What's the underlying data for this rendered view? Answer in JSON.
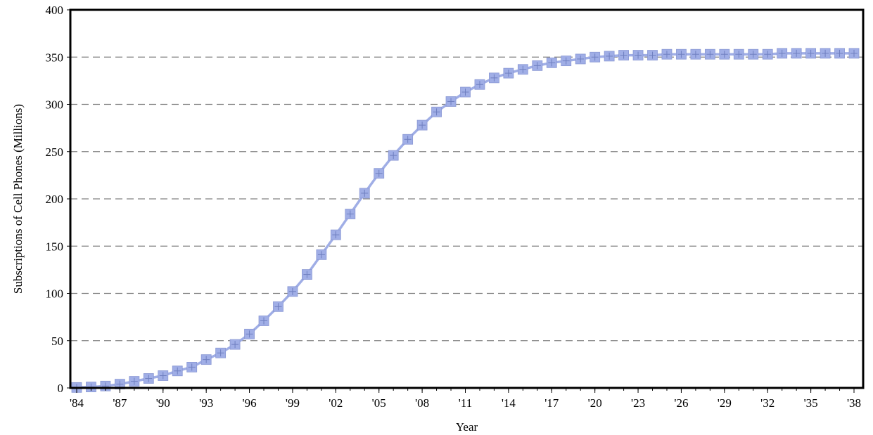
{
  "chart_data": {
    "type": "line",
    "title": "",
    "xlabel": "Year",
    "ylabel": "Subscriptions of Cell Phones (Millions)",
    "ylim": [
      0,
      400
    ],
    "yticks": [
      0,
      50,
      100,
      150,
      200,
      250,
      300,
      350,
      400
    ],
    "xlim": [
      1984,
      2038
    ],
    "xticks": [
      1984,
      1987,
      1990,
      1993,
      1996,
      1999,
      2002,
      2005,
      2008,
      2011,
      2014,
      2017,
      2020,
      2023,
      2026,
      2029,
      2032,
      2035,
      2038
    ],
    "xtick_labels": [
      "'84",
      "'87",
      "'90",
      "'93",
      "'96",
      "'99",
      "'02",
      "'05",
      "'08",
      "'11",
      "'14",
      "'17",
      "'20",
      "'23",
      "'26",
      "'29",
      "'32",
      "'35",
      "'38"
    ],
    "grid": "horizontal dashed",
    "legend": "none",
    "series": [
      {
        "color": "#a0aee6",
        "marker": "square-plus",
        "x": [
          1984,
          1985,
          1986,
          1987,
          1988,
          1989,
          1990,
          1991,
          1992,
          1993,
          1994,
          1995,
          1996,
          1997,
          1998,
          1999,
          2000,
          2001,
          2002,
          2003,
          2004,
          2005,
          2006,
          2007,
          2008,
          2009,
          2010,
          2011,
          2012,
          2013,
          2014,
          2015,
          2016,
          2017,
          2018,
          2019,
          2020,
          2021,
          2022,
          2023,
          2024,
          2025,
          2026,
          2027,
          2028,
          2029,
          2030,
          2031,
          2032,
          2033,
          2034,
          2035,
          2036,
          2037,
          2038
        ],
        "y": [
          0.5,
          1,
          2,
          4,
          7,
          10,
          13,
          18,
          22,
          30,
          37,
          46,
          57,
          71,
          86,
          102,
          120,
          141,
          162,
          184,
          206,
          227,
          246,
          263,
          278,
          292,
          303,
          313,
          321,
          328,
          333,
          337,
          341,
          344,
          346,
          348,
          350,
          351,
          352,
          352,
          352,
          353,
          353,
          353,
          353,
          353,
          353,
          353,
          353,
          354,
          354,
          354,
          354,
          354,
          354
        ]
      }
    ]
  }
}
